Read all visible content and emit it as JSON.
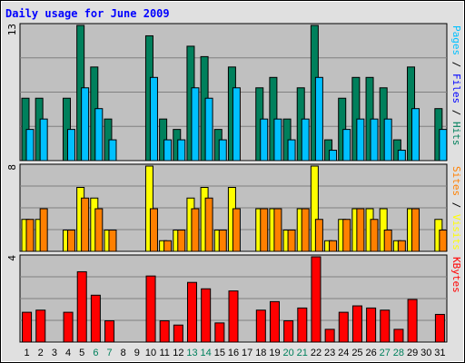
{
  "chart_data": {
    "type": "bar",
    "title": "Daily usage for June 2009",
    "categories": [
      "1",
      "2",
      "3",
      "4",
      "5",
      "6",
      "7",
      "8",
      "9",
      "10",
      "11",
      "12",
      "13",
      "14",
      "15",
      "16",
      "17",
      "18",
      "19",
      "20",
      "21",
      "22",
      "23",
      "24",
      "25",
      "26",
      "27",
      "28",
      "29",
      "30",
      "31"
    ],
    "weekend_days": [
      "6",
      "7",
      "13",
      "14",
      "20",
      "21",
      "27",
      "28"
    ],
    "panels": [
      {
        "id": "hits-files-pages",
        "ymax_label": "13",
        "ymax": 13,
        "series": [
          {
            "name": "Hits",
            "color": "#00805c",
            "values": [
              6,
              6,
              0,
              6,
              13,
              9,
              4,
              0,
              0,
              12,
              4,
              3,
              11,
              10,
              3,
              9,
              0,
              7,
              8,
              4,
              7,
              13,
              2,
              6,
              8,
              8,
              7,
              2,
              9,
              0,
              5
            ]
          },
          {
            "name": "Pages",
            "color": "#00c0ff",
            "values": [
              3,
              4,
              0,
              3,
              7,
              5,
              2,
              0,
              0,
              8,
              2,
              2,
              7,
              6,
              2,
              7,
              0,
              4,
              4,
              2,
              4,
              8,
              1,
              3,
              4,
              4,
              4,
              1,
              5,
              0,
              3
            ]
          }
        ]
      },
      {
        "id": "visits-sites",
        "ymax_label": "8",
        "ymax": 8,
        "series": [
          {
            "name": "Visits",
            "color": "#ffff00",
            "values": [
              3,
              3,
              0,
              2,
              6,
              5,
              2,
              0,
              0,
              8,
              1,
              2,
              5,
              6,
              2,
              6,
              0,
              4,
              4,
              2,
              4,
              8,
              1,
              3,
              4,
              4,
              4,
              1,
              4,
              0,
              3
            ]
          },
          {
            "name": "Sites",
            "color": "#ff8000",
            "values": [
              3,
              4,
              0,
              2,
              5,
              4,
              2,
              0,
              0,
              4,
              1,
              2,
              4,
              5,
              2,
              4,
              0,
              4,
              4,
              2,
              4,
              3,
              1,
              3,
              4,
              3,
              2,
              1,
              4,
              0,
              2
            ]
          }
        ]
      },
      {
        "id": "kbytes",
        "ymax_label": "4",
        "ymax": 4,
        "series": [
          {
            "name": "KBytes",
            "color": "#ff0000",
            "values": [
              1.4,
              1.5,
              0,
              1.4,
              3.3,
              2.2,
              1.0,
              0,
              0,
              3.1,
              1.0,
              0.8,
              2.8,
              2.5,
              0.9,
              2.4,
              0,
              1.5,
              1.9,
              1.0,
              1.6,
              4.0,
              0.6,
              1.4,
              1.7,
              1.6,
              1.5,
              0.6,
              2.0,
              0,
              1.3
            ]
          }
        ]
      }
    ],
    "right_labels": [
      [
        {
          "text": "Pages",
          "color": "#00c0ff"
        },
        {
          "text": " / ",
          "color": "#000000"
        },
        {
          "text": "Files",
          "color": "#0000ff"
        },
        {
          "text": " / ",
          "color": "#000000"
        },
        {
          "text": "Hits",
          "color": "#00805c"
        }
      ],
      [
        {
          "text": "Sites",
          "color": "#ff8000"
        },
        {
          "text": " / ",
          "color": "#000000"
        },
        {
          "text": "Visits",
          "color": "#ffff00"
        }
      ],
      [
        {
          "text": "KBytes",
          "color": "#ff0000"
        }
      ]
    ],
    "colors": {
      "title": "#0000ff",
      "plot_bg": "#c0c0c0",
      "page_bg": "#e0e0e0",
      "weekday_label": "#000000",
      "weekend_label": "#00805c",
      "grid": "#808080"
    },
    "grid": true
  }
}
